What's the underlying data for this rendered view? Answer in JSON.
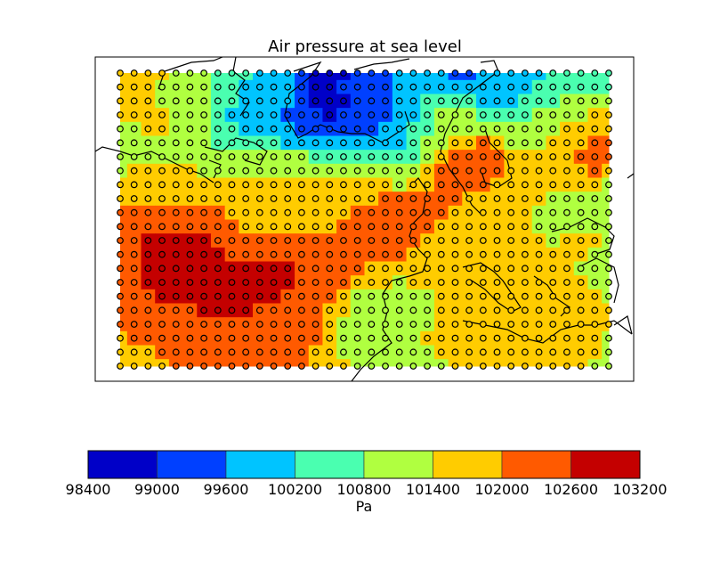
{
  "chart_data": {
    "type": "heatmap",
    "title": "Air pressure at sea level",
    "colorbar": {
      "label": "Pa",
      "levels": [
        98400,
        99000,
        99600,
        100200,
        100800,
        101400,
        102000,
        102600,
        103200
      ],
      "tick_labels": [
        "98400",
        "99000",
        "99600",
        "100200",
        "100800",
        "101400",
        "102000",
        "102600",
        "103200"
      ],
      "colors": [
        "#0000c8",
        "#0040ff",
        "#00c4ff",
        "#4affb0",
        "#b0ff40",
        "#ffcc00",
        "#ff5a00",
        "#c40000"
      ]
    },
    "coastlines": true,
    "grid_markers": "circle",
    "values": [
      [
        101700,
        101700,
        101700,
        101700,
        101100,
        101100,
        101100,
        100500,
        100500,
        100500,
        99900,
        99900,
        99900,
        99300,
        98700,
        98700,
        98700,
        99300,
        99300,
        99300,
        99900,
        99900,
        99900,
        99900,
        99300,
        99300,
        99900,
        99900,
        99900,
        99900,
        99900,
        100500,
        100500,
        100500,
        100500,
        100500
      ],
      [
        101700,
        101700,
        101700,
        101100,
        101100,
        101100,
        101100,
        100500,
        100500,
        99900,
        99900,
        99900,
        99900,
        99300,
        98700,
        98700,
        99300,
        99300,
        99300,
        99300,
        99900,
        99900,
        99900,
        99900,
        99900,
        99900,
        99900,
        99900,
        99900,
        99900,
        100500,
        100500,
        100500,
        100500,
        100500,
        100500
      ],
      [
        101700,
        101700,
        101700,
        101100,
        101100,
        101100,
        101100,
        100500,
        100500,
        99900,
        99900,
        99900,
        99900,
        99300,
        98700,
        98700,
        98700,
        99300,
        99300,
        99300,
        99900,
        99900,
        100500,
        100500,
        100500,
        100500,
        99900,
        99900,
        99900,
        100500,
        100500,
        100500,
        101100,
        101100,
        101100,
        101100
      ],
      [
        101700,
        101700,
        101700,
        101700,
        101100,
        101100,
        101100,
        100500,
        99900,
        99900,
        99900,
        99900,
        99300,
        99300,
        99300,
        98700,
        99300,
        99300,
        99300,
        99300,
        99900,
        99900,
        100500,
        101100,
        101100,
        101100,
        100500,
        100500,
        100500,
        100500,
        101100,
        101100,
        101100,
        101100,
        101700,
        101700
      ],
      [
        101100,
        101100,
        101700,
        101700,
        101100,
        101100,
        101100,
        100500,
        100500,
        99900,
        99900,
        99900,
        99900,
        99300,
        99300,
        99300,
        99300,
        99300,
        99300,
        99900,
        99900,
        100500,
        100500,
        101100,
        101100,
        101100,
        101100,
        101100,
        101100,
        101100,
        101100,
        101100,
        101700,
        101700,
        101700,
        101700
      ],
      [
        101100,
        101100,
        101100,
        101100,
        101100,
        101100,
        101100,
        100500,
        100500,
        100500,
        100500,
        100500,
        99900,
        99900,
        99900,
        99900,
        99900,
        99900,
        99900,
        99900,
        99900,
        100500,
        101100,
        101100,
        101700,
        101700,
        102300,
        101700,
        101100,
        101100,
        101100,
        101700,
        101700,
        101700,
        102300,
        102300
      ],
      [
        101100,
        101100,
        101100,
        101100,
        101100,
        101100,
        101100,
        101100,
        101100,
        101100,
        101100,
        101100,
        101100,
        101100,
        100500,
        100500,
        100500,
        100500,
        100500,
        100500,
        100500,
        100500,
        101100,
        101700,
        102300,
        102300,
        102300,
        102300,
        101700,
        101700,
        101700,
        101700,
        101700,
        102300,
        102300,
        102300
      ],
      [
        101100,
        101700,
        101700,
        101700,
        101700,
        101700,
        101100,
        101100,
        101100,
        101100,
        101100,
        101100,
        101100,
        101100,
        101100,
        101100,
        101100,
        101100,
        101100,
        101100,
        101100,
        101100,
        101700,
        102300,
        102300,
        102300,
        102300,
        102300,
        101700,
        101700,
        101700,
        101700,
        101700,
        101700,
        102300,
        101700
      ],
      [
        101700,
        101700,
        101700,
        101700,
        101700,
        101700,
        101700,
        101700,
        101700,
        101700,
        101700,
        101700,
        101700,
        101700,
        101700,
        101700,
        101700,
        101700,
        101700,
        101700,
        101100,
        101700,
        101700,
        102300,
        102300,
        102300,
        102300,
        101700,
        101700,
        101700,
        101700,
        101700,
        101700,
        101700,
        101700,
        101100
      ],
      [
        101700,
        101700,
        101700,
        101700,
        101700,
        101700,
        101700,
        101700,
        101700,
        101700,
        101700,
        101700,
        101700,
        101700,
        101700,
        101700,
        101700,
        101700,
        101700,
        102300,
        102300,
        102300,
        102300,
        102300,
        102300,
        101700,
        101700,
        101700,
        101700,
        101700,
        101700,
        101100,
        101100,
        101100,
        101100,
        101100
      ],
      [
        102300,
        102300,
        102300,
        102300,
        102300,
        102300,
        102300,
        102300,
        101700,
        101700,
        101700,
        101700,
        101700,
        101700,
        101700,
        101700,
        101700,
        102300,
        102300,
        102300,
        102300,
        102300,
        102300,
        102300,
        101700,
        101700,
        101700,
        101700,
        101700,
        101700,
        101100,
        101100,
        101100,
        101100,
        101100,
        101100
      ],
      [
        102300,
        102300,
        102300,
        102300,
        102300,
        102300,
        102300,
        102300,
        102300,
        101700,
        101700,
        101700,
        101700,
        101700,
        101700,
        101700,
        102300,
        102300,
        102300,
        102300,
        102300,
        102300,
        102300,
        101700,
        101700,
        101700,
        101700,
        101700,
        101700,
        101700,
        101100,
        101100,
        101100,
        101100,
        101100,
        101100
      ],
      [
        102300,
        102300,
        102900,
        102900,
        102900,
        102900,
        102900,
        102300,
        102300,
        102300,
        102300,
        102300,
        102300,
        102300,
        102300,
        102300,
        102300,
        102300,
        102300,
        102300,
        102300,
        102300,
        101700,
        101700,
        101700,
        101700,
        101700,
        101700,
        101700,
        101700,
        101700,
        101100,
        101700,
        101700,
        101700,
        101100
      ],
      [
        102300,
        102300,
        102900,
        102900,
        102900,
        102900,
        102900,
        102900,
        102300,
        102300,
        102300,
        102300,
        102300,
        102300,
        102300,
        102300,
        102300,
        102300,
        102300,
        102300,
        102300,
        101700,
        101700,
        101700,
        101700,
        101700,
        101700,
        101700,
        101700,
        101700,
        101700,
        101700,
        101700,
        101700,
        101100,
        101100
      ],
      [
        102300,
        102300,
        102900,
        102900,
        102900,
        102900,
        102900,
        102900,
        102900,
        102900,
        102900,
        102900,
        102900,
        102300,
        102300,
        102300,
        102300,
        102300,
        101700,
        101700,
        101700,
        101700,
        101700,
        101700,
        101700,
        101700,
        101700,
        101700,
        101700,
        101700,
        101700,
        101700,
        101700,
        101100,
        101100,
        101100
      ],
      [
        102300,
        102300,
        102900,
        102900,
        102900,
        102900,
        102900,
        102900,
        102900,
        102900,
        102900,
        102900,
        102900,
        102300,
        102300,
        102300,
        102300,
        101700,
        101700,
        101700,
        101100,
        101700,
        101700,
        101700,
        101700,
        101700,
        101700,
        101700,
        101700,
        101700,
        101700,
        101700,
        101700,
        101700,
        101100,
        101100
      ],
      [
        102300,
        102300,
        102300,
        102900,
        102900,
        102900,
        102900,
        102900,
        102900,
        102900,
        102900,
        102900,
        102300,
        102300,
        102300,
        102300,
        101700,
        101100,
        101100,
        101100,
        101100,
        101100,
        101100,
        101700,
        101700,
        101700,
        101700,
        101700,
        101700,
        101700,
        101700,
        101700,
        101700,
        101700,
        101700,
        101100
      ],
      [
        102300,
        102300,
        102300,
        102300,
        102300,
        102300,
        102900,
        102900,
        102900,
        102900,
        102300,
        102300,
        102300,
        102300,
        102300,
        101700,
        101700,
        101100,
        101100,
        101100,
        101100,
        101100,
        101100,
        101700,
        101700,
        101700,
        101700,
        101700,
        101700,
        101700,
        101700,
        101700,
        101700,
        101700,
        101700,
        101700
      ],
      [
        102300,
        102300,
        102300,
        102300,
        102300,
        102300,
        102300,
        102300,
        102300,
        102300,
        102300,
        102300,
        102300,
        102300,
        102300,
        101700,
        101100,
        101100,
        101100,
        101100,
        101100,
        101100,
        101100,
        101700,
        101700,
        101700,
        101700,
        101700,
        101700,
        101700,
        101700,
        101700,
        101700,
        101700,
        101700,
        101700
      ],
      [
        101700,
        102300,
        102300,
        102300,
        102300,
        102300,
        102300,
        102300,
        102300,
        102300,
        102300,
        102300,
        102300,
        102300,
        102300,
        101700,
        101100,
        101100,
        101100,
        101100,
        101100,
        101100,
        101700,
        101700,
        101700,
        101700,
        101700,
        101700,
        101700,
        101700,
        101700,
        101700,
        101700,
        101700,
        101700,
        101100
      ],
      [
        101700,
        101700,
        101700,
        102300,
        102300,
        102300,
        102300,
        102300,
        102300,
        102300,
        102300,
        102300,
        102300,
        102300,
        101700,
        101700,
        101100,
        101100,
        101100,
        101100,
        101100,
        101100,
        101100,
        101700,
        101700,
        101700,
        101700,
        101700,
        101700,
        101700,
        101700,
        101700,
        101700,
        101700,
        101700,
        101100
      ],
      [
        101700,
        101700,
        101700,
        101700,
        102300,
        102300,
        102300,
        102300,
        102300,
        102300,
        102300,
        102300,
        102300,
        102300,
        101700,
        101700,
        101700,
        101100,
        101100,
        101100,
        101100,
        101100,
        101100,
        101100,
        101700,
        101700,
        101700,
        101700,
        101700,
        101700,
        101700,
        101700,
        101700,
        101700,
        101100,
        101100
      ]
    ]
  }
}
